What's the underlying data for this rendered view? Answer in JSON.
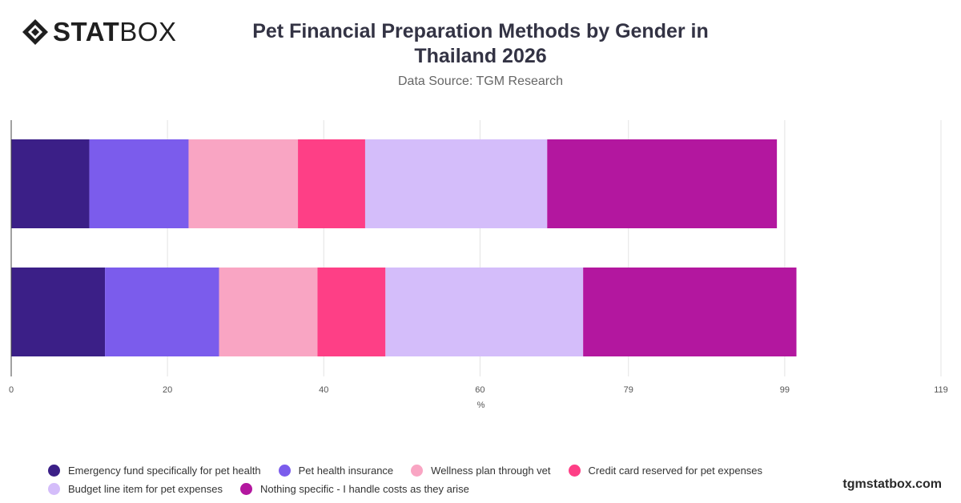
{
  "brand": {
    "logo_bold": "STAT",
    "logo_light": "BOX",
    "watermark": "tgmstatbox.com"
  },
  "title_line1": "Pet Financial Preparation Methods by Gender in",
  "title_line2": "Thailand 2026",
  "subtitle": "Data Source: TGM Research",
  "chart_data": {
    "type": "bar",
    "orientation": "horizontal",
    "stacked": true,
    "categories": [
      "",
      ""
    ],
    "xlabel": "%",
    "ylabel": "",
    "xlim": [
      0,
      119
    ],
    "xticks": [
      "0",
      "20",
      "40",
      "60",
      "79",
      "99",
      "119"
    ],
    "grid": true,
    "legend_position": "bottom-left",
    "series": [
      {
        "name": "Emergency fund specifically for pet health",
        "color": "#3b1f87",
        "values": [
          10,
          12
        ]
      },
      {
        "name": "Pet health insurance",
        "color": "#7b5cec",
        "values": [
          12.7,
          14.6
        ]
      },
      {
        "name": "Wellness plan through vet",
        "color": "#f9a5c3",
        "values": [
          14,
          12.6
        ]
      },
      {
        "name": "Credit card reserved for pet expenses",
        "color": "#fe3f86",
        "values": [
          8.6,
          8.7
        ]
      },
      {
        "name": "Budget line item for pet expenses",
        "color": "#d4bdfa",
        "values": [
          23.3,
          25.3
        ]
      },
      {
        "name": "Nothing specific - I handle costs as they arise",
        "color": "#b3179f",
        "values": [
          29.4,
          27.3
        ]
      }
    ]
  }
}
